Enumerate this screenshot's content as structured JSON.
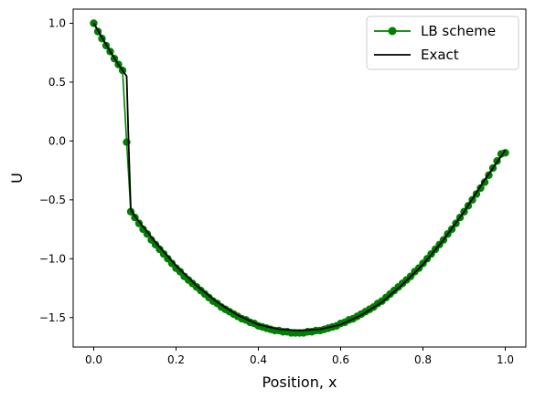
{
  "chart_data": {
    "type": "line",
    "xlabel": "Position, x",
    "ylabel": "U",
    "xlim": [
      -0.05,
      1.05
    ],
    "ylim": [
      -1.75,
      1.12
    ],
    "x_ticks": [
      0.0,
      0.2,
      0.4,
      0.6,
      0.8,
      1.0
    ],
    "x_tick_labels": [
      "0.0",
      "0.2",
      "0.4",
      "0.6",
      "0.8",
      "1.0"
    ],
    "y_ticks": [
      1.0,
      0.5,
      0.0,
      -0.5,
      -1.0,
      -1.5
    ],
    "y_tick_labels": [
      "1.0",
      "0.5",
      "0.0",
      "−0.5",
      "−1.0",
      "−1.5"
    ],
    "grid": false,
    "legend_position": "top-right",
    "series": [
      {
        "name": "LB scheme",
        "color": "#008000",
        "marker": "circle",
        "x": [
          0.0,
          0.01,
          0.02,
          0.03,
          0.04,
          0.05,
          0.06,
          0.07,
          0.08,
          0.09,
          0.1,
          0.11,
          0.12,
          0.13,
          0.14,
          0.15,
          0.16,
          0.17,
          0.18,
          0.19,
          0.2,
          0.21,
          0.22,
          0.23,
          0.24,
          0.25,
          0.26,
          0.27,
          0.28,
          0.29,
          0.3,
          0.31,
          0.32,
          0.33,
          0.34,
          0.35,
          0.36,
          0.37,
          0.38,
          0.39,
          0.4,
          0.41,
          0.42,
          0.43,
          0.44,
          0.45,
          0.46,
          0.47,
          0.48,
          0.49,
          0.5,
          0.51,
          0.52,
          0.53,
          0.54,
          0.55,
          0.56,
          0.57,
          0.58,
          0.59,
          0.6,
          0.61,
          0.62,
          0.63,
          0.64,
          0.65,
          0.66,
          0.67,
          0.68,
          0.69,
          0.7,
          0.71,
          0.72,
          0.73,
          0.74,
          0.75,
          0.76,
          0.77,
          0.78,
          0.79,
          0.8,
          0.81,
          0.82,
          0.83,
          0.84,
          0.85,
          0.86,
          0.87,
          0.88,
          0.89,
          0.9,
          0.91,
          0.92,
          0.93,
          0.94,
          0.95,
          0.96,
          0.97,
          0.98,
          0.99,
          1.0
        ],
        "y": [
          1.0,
          0.93,
          0.87,
          0.81,
          0.76,
          0.7,
          0.65,
          0.6,
          -0.01,
          -0.6,
          -0.65,
          -0.7,
          -0.75,
          -0.79,
          -0.84,
          -0.88,
          -0.92,
          -0.96,
          -1.0,
          -1.04,
          -1.08,
          -1.11,
          -1.15,
          -1.18,
          -1.21,
          -1.24,
          -1.27,
          -1.3,
          -1.33,
          -1.36,
          -1.38,
          -1.41,
          -1.43,
          -1.45,
          -1.47,
          -1.49,
          -1.51,
          -1.52,
          -1.54,
          -1.55,
          -1.57,
          -1.58,
          -1.59,
          -1.6,
          -1.61,
          -1.61,
          -1.62,
          -1.62,
          -1.63,
          -1.63,
          -1.63,
          -1.63,
          -1.62,
          -1.62,
          -1.61,
          -1.61,
          -1.6,
          -1.59,
          -1.58,
          -1.57,
          -1.55,
          -1.54,
          -1.52,
          -1.51,
          -1.49,
          -1.47,
          -1.45,
          -1.43,
          -1.41,
          -1.38,
          -1.36,
          -1.33,
          -1.3,
          -1.27,
          -1.24,
          -1.21,
          -1.18,
          -1.15,
          -1.11,
          -1.08,
          -1.04,
          -1.0,
          -0.96,
          -0.92,
          -0.88,
          -0.84,
          -0.79,
          -0.75,
          -0.7,
          -0.65,
          -0.6,
          -0.55,
          -0.5,
          -0.45,
          -0.4,
          -0.35,
          -0.29,
          -0.23,
          -0.17,
          -0.11,
          -0.1
        ]
      },
      {
        "name": "Exact",
        "color": "#000000",
        "marker": "none",
        "x": [
          0.0,
          0.02,
          0.04,
          0.06,
          0.08,
          0.085,
          0.09,
          0.1,
          0.15,
          0.2,
          0.25,
          0.3,
          0.35,
          0.4,
          0.45,
          0.5,
          0.55,
          0.6,
          0.65,
          0.7,
          0.75,
          0.8,
          0.85,
          0.9,
          0.95,
          1.0
        ],
        "y": [
          1.0,
          0.88,
          0.76,
          0.65,
          0.55,
          -0.05,
          -0.58,
          -0.64,
          -0.86,
          -1.06,
          -1.23,
          -1.37,
          -1.48,
          -1.56,
          -1.6,
          -1.61,
          -1.6,
          -1.56,
          -1.48,
          -1.37,
          -1.22,
          -1.05,
          -0.84,
          -0.6,
          -0.33,
          -0.08
        ]
      }
    ]
  }
}
